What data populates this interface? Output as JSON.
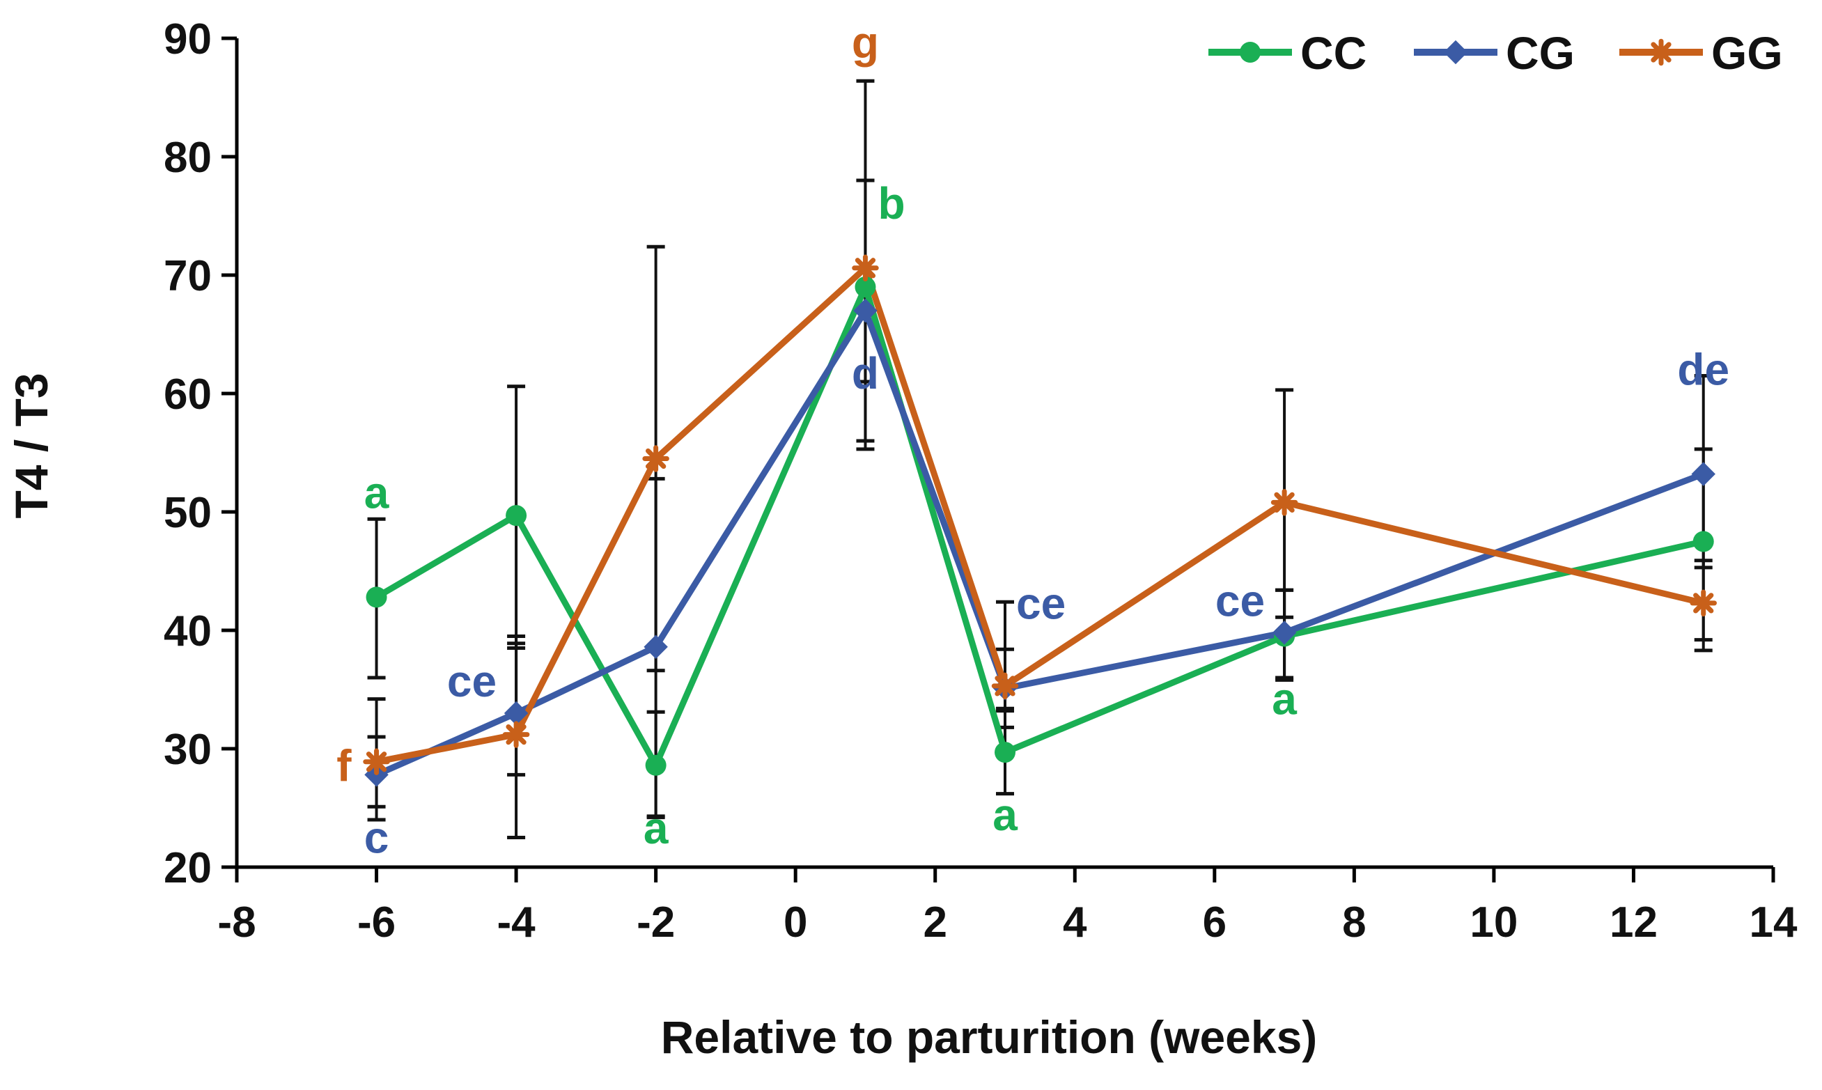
{
  "chart_data": {
    "type": "line",
    "title": "",
    "xlabel": "Relative to parturition (weeks)",
    "ylabel": "T4 / T3",
    "xlim": [
      -8,
      14
    ],
    "ylim": [
      20,
      90
    ],
    "xticks": [
      -8,
      -6,
      -4,
      -2,
      0,
      2,
      4,
      6,
      8,
      10,
      12,
      14
    ],
    "yticks": [
      20,
      30,
      40,
      50,
      60,
      70,
      80,
      90
    ],
    "x": [
      -6,
      -4,
      -2,
      1,
      3,
      7,
      13
    ],
    "grid": false,
    "legend_position": "top-right",
    "series": [
      {
        "name": "CC",
        "color": "#1AAF54",
        "marker": "circle",
        "values": [
          42.8,
          49.7,
          28.6,
          69.0,
          29.7,
          39.5,
          47.5
        ],
        "err_low": [
          36.0,
          38.5,
          24.3,
          61.0,
          26.2,
          35.8,
          39.2
        ],
        "err_high": [
          49.4,
          60.6,
          33.1,
          78.0,
          33.2,
          43.4,
          55.3
        ]
      },
      {
        "name": "CG",
        "color": "#3B5BA5",
        "marker": "diamond",
        "values": [
          27.8,
          33.0,
          38.6,
          67.0,
          35.1,
          39.8,
          53.2
        ],
        "err_low": [
          24.0,
          27.8,
          24.2,
          56.0,
          31.8,
          36.0,
          45.3
        ],
        "err_high": [
          34.2,
          39.5,
          52.8,
          78.0,
          42.4,
          43.4,
          61.5
        ]
      },
      {
        "name": "GG",
        "color": "#C8601A",
        "marker": "star",
        "values": [
          28.9,
          31.2,
          54.5,
          70.6,
          35.3,
          50.8,
          42.3
        ],
        "err_low": [
          25.1,
          22.5,
          36.6,
          55.3,
          33.4,
          41.1,
          38.3
        ],
        "err_high": [
          31.0,
          38.9,
          72.4,
          86.4,
          38.4,
          60.3,
          45.9
        ]
      }
    ],
    "annotations": [
      {
        "text": "a",
        "series": "CC",
        "x": -6,
        "y": 42.8,
        "position": "above"
      },
      {
        "text": "ce",
        "series": "CG",
        "x": -4,
        "y": 33.0,
        "position": "upper-left"
      },
      {
        "text": "f",
        "series": "GG",
        "x": -6,
        "y": 28.9,
        "position": "left"
      },
      {
        "text": "c",
        "series": "CG",
        "x": -6,
        "y": 27.8,
        "position": "below"
      },
      {
        "text": "a",
        "series": "CC",
        "x": -2,
        "y": 28.6,
        "position": "below"
      },
      {
        "text": "g",
        "series": "GG",
        "x": 1,
        "y": 70.6,
        "position": "top"
      },
      {
        "text": "b",
        "series": "CC",
        "x": 1,
        "y": 69.0,
        "position": "upper-right"
      },
      {
        "text": "d",
        "series": "CG",
        "x": 1,
        "y": 67.0,
        "position": "below"
      },
      {
        "text": "ce",
        "series": "CG",
        "x": 3,
        "y": 35.1,
        "position": "upper-right"
      },
      {
        "text": "a",
        "series": "CC",
        "x": 3,
        "y": 29.7,
        "position": "below"
      },
      {
        "text": "ce",
        "series": "CG",
        "x": 7,
        "y": 39.8,
        "position": "upper-left"
      },
      {
        "text": "a",
        "series": "CC",
        "x": 7,
        "y": 39.5,
        "position": "below"
      },
      {
        "text": "de",
        "series": "CG",
        "x": 13,
        "y": 53.2,
        "position": "above"
      }
    ]
  }
}
